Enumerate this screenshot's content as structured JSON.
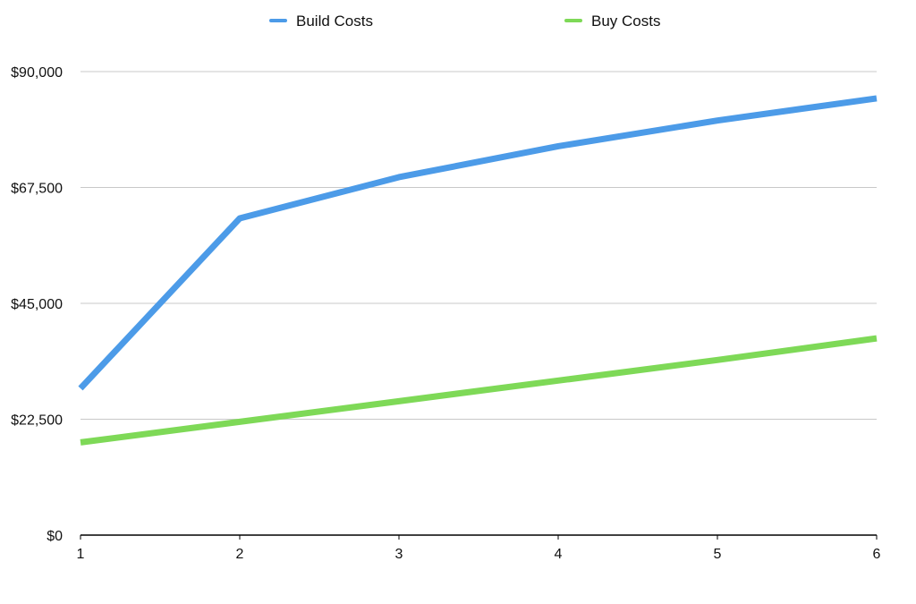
{
  "chart_data": {
    "type": "line",
    "title": "",
    "xlabel": "",
    "ylabel": "",
    "x": [
      1,
      2,
      3,
      4,
      5,
      6
    ],
    "x_tick_labels": [
      "1",
      "2",
      "3",
      "4",
      "5",
      "6"
    ],
    "ylim": [
      0,
      90000
    ],
    "y_ticks": [
      0,
      22500,
      45000,
      67500,
      90000
    ],
    "y_tick_labels": [
      "$0",
      "$22,500",
      "$45,000",
      "$67,500",
      "$90,000"
    ],
    "grid": true,
    "legend_position": "top-center",
    "series": [
      {
        "name": "Build Costs",
        "color": "#4C9BE8",
        "values": [
          28500,
          61500,
          69500,
          75500,
          80500,
          84800
        ]
      },
      {
        "name": "Buy Costs",
        "color": "#7ED957",
        "values": [
          18000,
          22000,
          26000,
          30000,
          34000,
          38200
        ]
      }
    ]
  }
}
